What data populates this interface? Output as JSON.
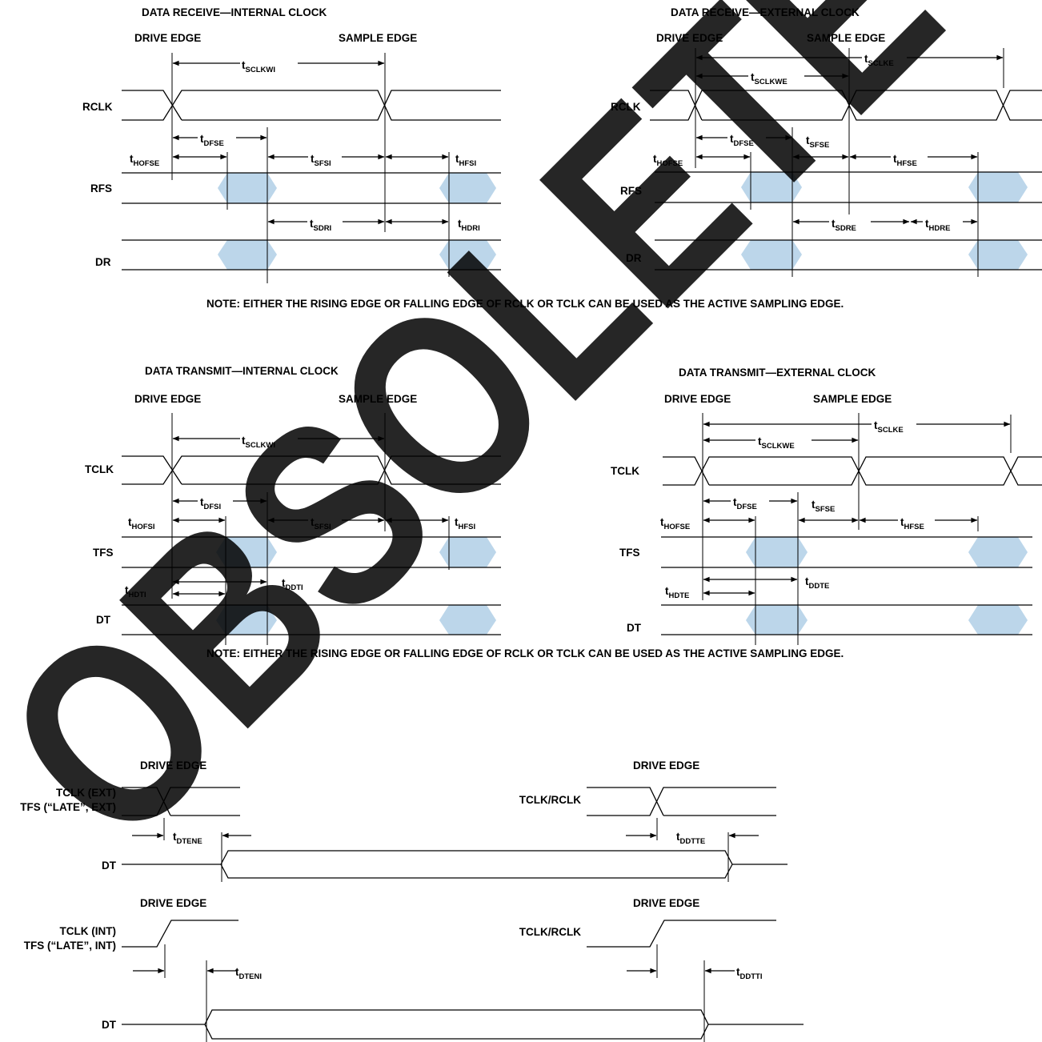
{
  "diagrams": {
    "rx_int": {
      "title": "DATA RECEIVE—INTERNAL CLOCK",
      "drive_edge": "DRIVE EDGE",
      "sample_edge": "SAMPLE EDGE",
      "signals": [
        "RCLK",
        "RFS",
        "DR"
      ],
      "timings": [
        {
          "t": "t",
          "s": "SCLKWI"
        },
        {
          "t": "t",
          "s": "DFSE"
        },
        {
          "t": "t",
          "s": "HOFSE"
        },
        {
          "t": "t",
          "s": "SFSI"
        },
        {
          "t": "t",
          "s": "HFSI"
        },
        {
          "t": "t",
          "s": "SDRI"
        },
        {
          "t": "t",
          "s": "HDRI"
        }
      ]
    },
    "rx_ext": {
      "title": "DATA RECEIVE—EXTERNAL CLOCK",
      "drive_edge": "DRIVE EDGE",
      "sample_edge": "SAMPLE EDGE",
      "signals": [
        "RCLK",
        "RFS",
        "DR"
      ],
      "timings": [
        {
          "t": "t",
          "s": "SCLKE"
        },
        {
          "t": "t",
          "s": "SCLKWE"
        },
        {
          "t": "t",
          "s": "DFSE"
        },
        {
          "t": "t",
          "s": "SFSE"
        },
        {
          "t": "t",
          "s": "HOFSE"
        },
        {
          "t": "t",
          "s": "HFSE"
        },
        {
          "t": "t",
          "s": "SDRE"
        },
        {
          "t": "t",
          "s": "HDRE"
        }
      ]
    },
    "tx_int": {
      "title": "DATA TRANSMIT—INTERNAL CLOCK",
      "drive_edge": "DRIVE EDGE",
      "sample_edge": "SAMPLE EDGE",
      "signals": [
        "TCLK",
        "TFS",
        "DT"
      ],
      "timings": [
        {
          "t": "t",
          "s": "SCLKWI"
        },
        {
          "t": "t",
          "s": "DFSI"
        },
        {
          "t": "t",
          "s": "HOFSI"
        },
        {
          "t": "t",
          "s": "SFSI"
        },
        {
          "t": "t",
          "s": "HFSI"
        },
        {
          "t": "t",
          "s": "HDTI"
        },
        {
          "t": "t",
          "s": "DDTI"
        }
      ]
    },
    "tx_ext": {
      "title": "DATA TRANSMIT—EXTERNAL CLOCK",
      "drive_edge": "DRIVE EDGE",
      "sample_edge": "SAMPLE EDGE",
      "signals": [
        "TCLK",
        "TFS",
        "DT"
      ],
      "timings": [
        {
          "t": "t",
          "s": "SCLKE"
        },
        {
          "t": "t",
          "s": "SCLKWE"
        },
        {
          "t": "t",
          "s": "DFSE"
        },
        {
          "t": "t",
          "s": "SFSE"
        },
        {
          "t": "t",
          "s": "HOFSE"
        },
        {
          "t": "t",
          "s": "HFSE"
        },
        {
          "t": "t",
          "s": "DDTE"
        },
        {
          "t": "t",
          "s": "HDTE"
        }
      ]
    }
  },
  "notes": {
    "note1": "NOTE: EITHER THE RISING EDGE OR FALLING EDGE OF RCLK OR TCLK CAN BE USED AS THE ACTIVE SAMPLING EDGE.",
    "note2": "NOTE: EITHER THE RISING EDGE OR FALLING EDGE OF RCLK OR TCLK CAN BE USED AS THE ACTIVE SAMPLING EDGE."
  },
  "enable": {
    "drive_edge": "DRIVE EDGE",
    "ext": {
      "clk_label_1": "TCLK (EXT)",
      "clk_label_2": "TFS (“LATE”, EXT)",
      "right_clk_label": "TCLK/RCLK",
      "dt_label": "DT",
      "t_en": {
        "t": "t",
        "s": "DTENE"
      },
      "t_dis": {
        "t": "t",
        "s": "DDTTE"
      }
    },
    "int": {
      "clk_label_1": "TCLK (INT)",
      "clk_label_2": "TFS (“LATE”, INT)",
      "right_clk_label": "TCLK/RCLK",
      "dt_label": "DT",
      "t_en": {
        "t": "t",
        "s": "DTENI"
      },
      "t_dis": {
        "t": "t",
        "s": "DDTTI"
      }
    }
  },
  "watermark": {
    "text": "OBSOLETE",
    "color": "#9a9a9a"
  },
  "colors": {
    "valid_window": "#bcd6ea",
    "ink": "#000000"
  }
}
